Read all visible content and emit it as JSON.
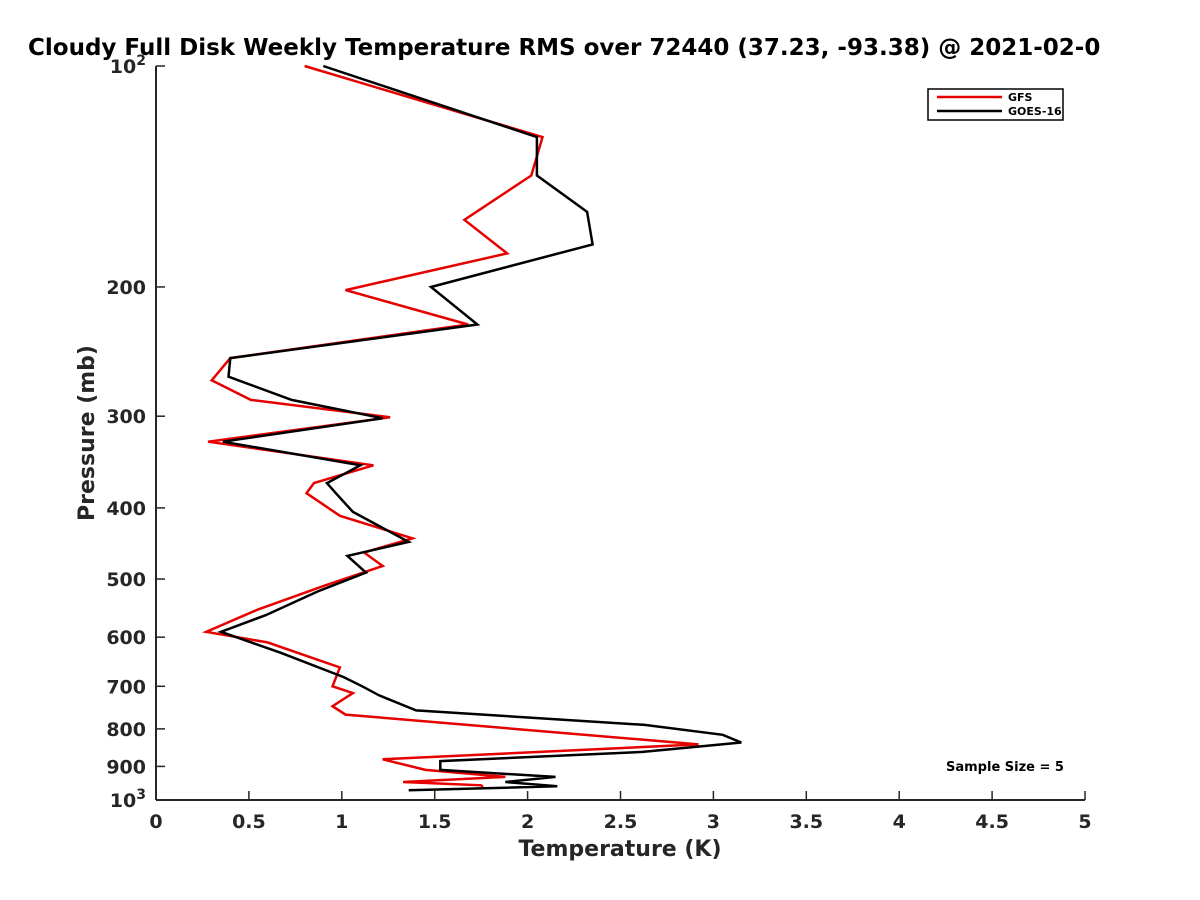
{
  "chart_data": {
    "type": "line",
    "title": "Cloudy Full Disk Weekly Temperature RMS over 72440 (37.23, -93.38) @ 2021-02-0",
    "xlabel": "Temperature (K)",
    "ylabel": "Pressure (mb)",
    "xlim": [
      0,
      5
    ],
    "ylim": [
      100,
      1000
    ],
    "y_scale": "log",
    "y_reversed": true,
    "grid": false,
    "legend_position": "top-right",
    "x_ticks": [
      "0",
      "0.5",
      "1",
      "1.5",
      "2",
      "2.5",
      "3",
      "3.5",
      "4",
      "4.5",
      "5"
    ],
    "x_tick_values": [
      0,
      0.5,
      1,
      1.5,
      2,
      2.5,
      3,
      3.5,
      4,
      4.5,
      5
    ],
    "y_ticks": [
      {
        "value": 100,
        "label": "10",
        "sup": "2"
      },
      {
        "value": 200,
        "label": "200",
        "sup": ""
      },
      {
        "value": 300,
        "label": "300",
        "sup": ""
      },
      {
        "value": 400,
        "label": "400",
        "sup": ""
      },
      {
        "value": 500,
        "label": "500",
        "sup": ""
      },
      {
        "value": 600,
        "label": "600",
        "sup": ""
      },
      {
        "value": 700,
        "label": "700",
        "sup": ""
      },
      {
        "value": 800,
        "label": "800",
        "sup": ""
      },
      {
        "value": 900,
        "label": "900",
        "sup": ""
      },
      {
        "value": 1000,
        "label": "10",
        "sup": "3"
      }
    ],
    "annotation": "Sample Size = 5",
    "series": [
      {
        "name": "GFS",
        "color": "#e60000",
        "points": [
          [
            0.8,
            100
          ],
          [
            2.08,
            125
          ],
          [
            2.02,
            141
          ],
          [
            1.66,
            162
          ],
          [
            1.89,
            180
          ],
          [
            1.02,
            202
          ],
          [
            1.68,
            225
          ],
          [
            0.4,
            250
          ],
          [
            0.3,
            268
          ],
          [
            0.51,
            285
          ],
          [
            1.26,
            301
          ],
          [
            0.28,
            325
          ],
          [
            1.17,
            350
          ],
          [
            0.85,
            370
          ],
          [
            0.81,
            382
          ],
          [
            0.99,
            410
          ],
          [
            1.38,
            440
          ],
          [
            1.12,
            460
          ],
          [
            1.22,
            480
          ],
          [
            0.91,
            510
          ],
          [
            0.55,
            550
          ],
          [
            0.27,
            590
          ],
          [
            0.6,
            610
          ],
          [
            0.99,
            660
          ],
          [
            0.95,
            700
          ],
          [
            1.06,
            715
          ],
          [
            0.95,
            745
          ],
          [
            1.02,
            765
          ],
          [
            2.92,
            840
          ],
          [
            1.22,
            880
          ],
          [
            1.45,
            910
          ],
          [
            1.88,
            930
          ],
          [
            1.33,
            945
          ],
          [
            1.75,
            955
          ],
          [
            1.76,
            960
          ]
        ]
      },
      {
        "name": "GOES-16",
        "color": "#000000",
        "points": [
          [
            0.9,
            100
          ],
          [
            2.05,
            125
          ],
          [
            2.05,
            141
          ],
          [
            2.32,
            158
          ],
          [
            2.35,
            175
          ],
          [
            1.48,
            200
          ],
          [
            1.73,
            225
          ],
          [
            0.4,
            250
          ],
          [
            0.39,
            265
          ],
          [
            0.73,
            285
          ],
          [
            1.22,
            302
          ],
          [
            0.36,
            325
          ],
          [
            1.1,
            350
          ],
          [
            0.92,
            370
          ],
          [
            0.98,
            385
          ],
          [
            1.06,
            405
          ],
          [
            1.36,
            445
          ],
          [
            1.03,
            465
          ],
          [
            1.13,
            490
          ],
          [
            0.87,
            520
          ],
          [
            0.59,
            560
          ],
          [
            0.35,
            590
          ],
          [
            0.67,
            630
          ],
          [
            1.01,
            680
          ],
          [
            1.11,
            700
          ],
          [
            1.2,
            720
          ],
          [
            1.4,
            755
          ],
          [
            2.63,
            790
          ],
          [
            3.05,
            815
          ],
          [
            3.15,
            835
          ],
          [
            2.62,
            860
          ],
          [
            1.53,
            885
          ],
          [
            1.53,
            910
          ],
          [
            2.15,
            930
          ],
          [
            1.88,
            945
          ],
          [
            2.16,
            958
          ],
          [
            1.36,
            970
          ]
        ]
      }
    ]
  }
}
